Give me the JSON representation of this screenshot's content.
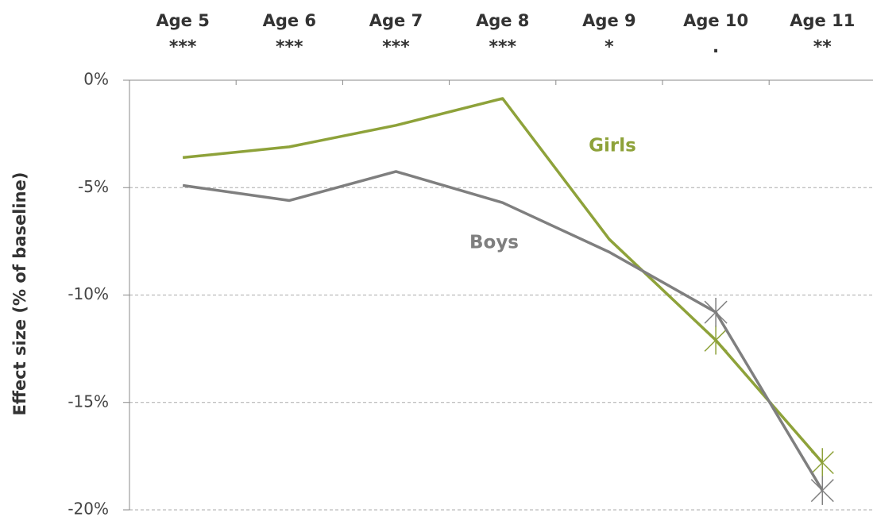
{
  "chart_data": {
    "type": "line",
    "y_axis_label": "Effect size (% of baseline)",
    "categories": [
      "Age 5",
      "Age 6",
      "Age 7",
      "Age 8",
      "Age 9",
      "Age 10",
      "Age 11"
    ],
    "significance": [
      "***",
      "***",
      "***",
      "***",
      "*",
      ".",
      "**"
    ],
    "series": [
      {
        "name": "Girls",
        "color": "#8ea23a",
        "values": [
          -3.6,
          -3.1,
          -2.1,
          -0.85,
          -7.4,
          -12.1,
          -17.8
        ],
        "marker": "x",
        "marked": [
          5,
          6
        ]
      },
      {
        "name": "Boys",
        "color": "#7f7f7f",
        "values": [
          -4.9,
          -5.6,
          -4.25,
          -5.7,
          -8.0,
          -10.8,
          -19.1
        ],
        "marker": "x",
        "marked": [
          5,
          6
        ]
      }
    ],
    "ylim": [
      -20,
      0
    ],
    "yticks": [
      {
        "value": 0,
        "label": "0%"
      },
      {
        "value": -5,
        "label": "-5%"
      },
      {
        "value": -10,
        "label": "-10%"
      },
      {
        "value": -15,
        "label": "-15%"
      },
      {
        "value": -20,
        "label": "-20%"
      }
    ],
    "grid": true
  }
}
